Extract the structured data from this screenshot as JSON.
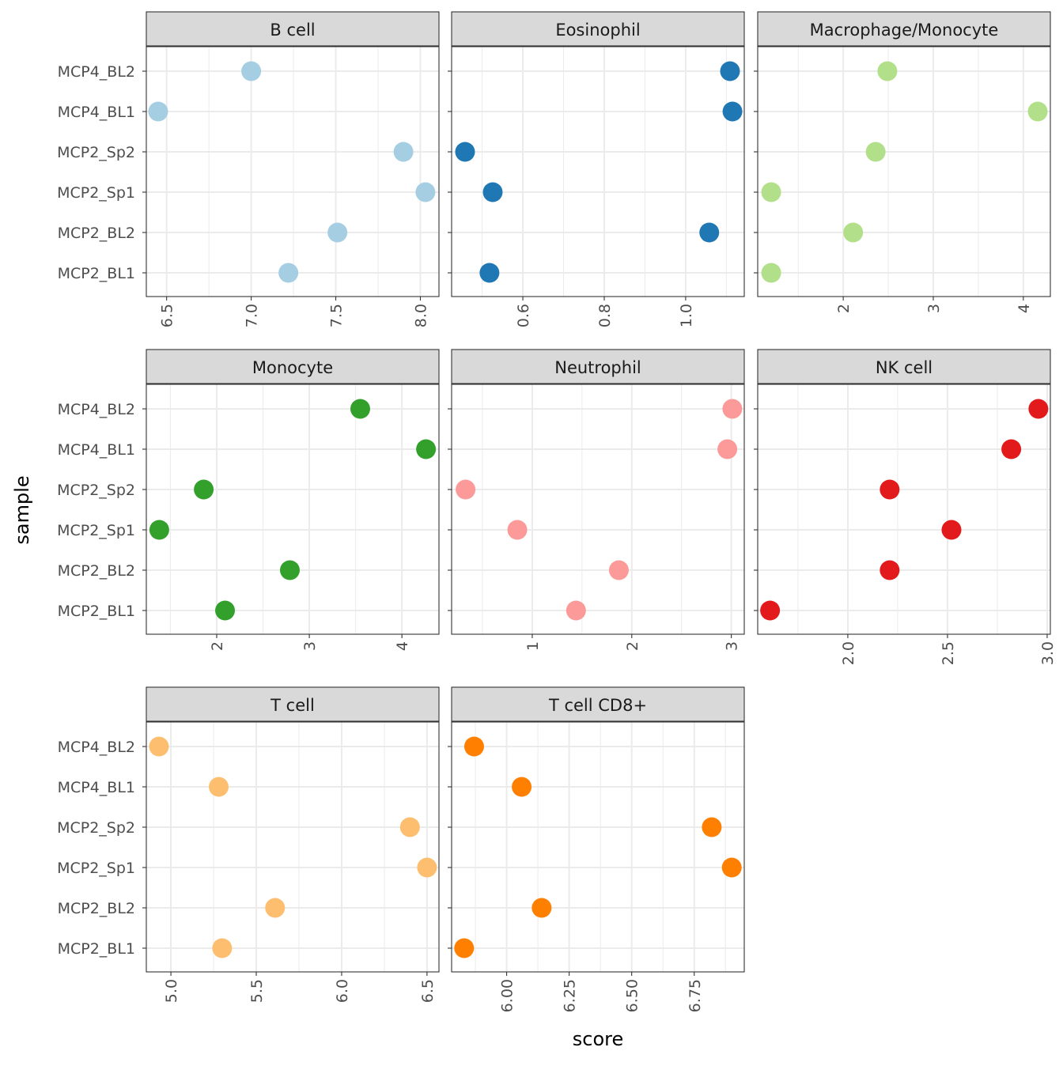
{
  "chart_data": {
    "type": "scatter",
    "xlabel": "score",
    "ylabel": "sample",
    "grid": true,
    "categories": [
      "MCP4_BL2",
      "MCP4_BL1",
      "MCP2_Sp2",
      "MCP2_Sp1",
      "MCP2_BL2",
      "MCP2_BL1"
    ],
    "facets": [
      {
        "title": "B cell",
        "color": "#A6CEE3",
        "xlim": [
          6.38,
          8.11
        ],
        "ticks": [
          6.5,
          7.0,
          7.5,
          8.0
        ],
        "tick_labels": [
          "6.5",
          "7.0",
          "7.5",
          "8.0"
        ],
        "values": [
          7.0,
          6.45,
          7.9,
          8.03,
          7.51,
          7.22
        ]
      },
      {
        "title": "Eosinophil",
        "color": "#1F78B4",
        "xlim": [
          0.425,
          1.144
        ],
        "ticks": [
          0.6,
          0.8,
          1.0
        ],
        "tick_labels": [
          "0.6",
          "0.8",
          "1.0"
        ],
        "values": [
          1.109,
          1.115,
          0.458,
          0.526,
          1.058,
          0.518
        ]
      },
      {
        "title": "Macrophage/Monocyte",
        "color": "#B2DF8A",
        "xlim": [
          1.05,
          4.3
        ],
        "ticks": [
          2,
          3,
          4
        ],
        "tick_labels": [
          "2",
          "3",
          "4"
        ],
        "values": [
          2.49,
          4.16,
          2.36,
          1.2,
          2.11,
          1.2
        ]
      },
      {
        "title": "Monocyte",
        "color": "#33A02C",
        "xlim": [
          1.24,
          4.4
        ],
        "ticks": [
          2,
          3,
          4
        ],
        "tick_labels": [
          "2",
          "3",
          "4"
        ],
        "values": [
          3.55,
          4.26,
          1.86,
          1.38,
          2.79,
          2.09
        ]
      },
      {
        "title": "Neutrophil",
        "color": "#FB9A99",
        "xlim": [
          0.19,
          3.13
        ],
        "ticks": [
          1,
          2,
          3
        ],
        "tick_labels": [
          "1",
          "2",
          "3"
        ],
        "values": [
          3.01,
          2.96,
          0.33,
          0.85,
          1.87,
          1.44
        ]
      },
      {
        "title": "NK cell",
        "color": "#E31A1C",
        "xlim": [
          1.548,
          3.016
        ],
        "ticks": [
          2.0,
          2.5,
          3.0
        ],
        "tick_labels": [
          "2.0",
          "2.5",
          "3.0"
        ],
        "values": [
          2.956,
          2.82,
          2.21,
          2.52,
          2.21,
          1.61
        ]
      },
      {
        "title": "T cell",
        "color": "#FDBF6F",
        "xlim": [
          4.856,
          6.57
        ],
        "ticks": [
          5.0,
          5.5,
          6.0,
          6.5
        ],
        "tick_labels": [
          "5.0",
          "5.5",
          "6.0",
          "6.5"
        ],
        "values": [
          4.93,
          5.28,
          6.4,
          6.5,
          5.61,
          5.3
        ]
      },
      {
        "title": "T cell CD8+",
        "color": "#FF7F00",
        "xlim": [
          5.78,
          6.95
        ],
        "ticks": [
          6.0,
          6.25,
          6.5,
          6.75
        ],
        "tick_labels": [
          "6.00",
          "6.25",
          "6.50",
          "6.75"
        ],
        "values": [
          5.87,
          6.06,
          6.82,
          6.9,
          6.14,
          5.83
        ]
      }
    ]
  }
}
